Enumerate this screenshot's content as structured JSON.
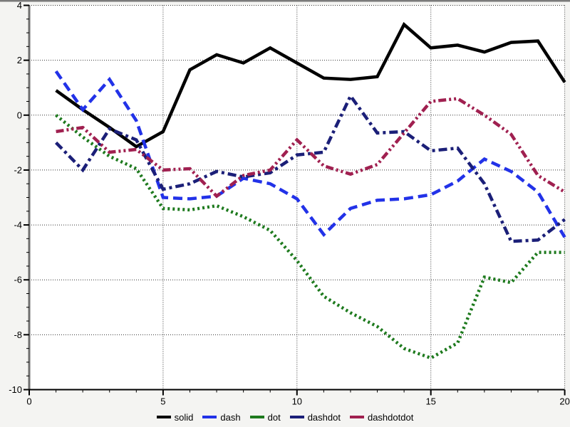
{
  "figure": {
    "margin_background": "#f4f4f2",
    "plot_background": "#ffffff",
    "grid_color": "#333333",
    "x_axis_color": "#000000",
    "y_axis_color": "#6f6f6f",
    "top_border_color": "#7a7a7a"
  },
  "axes": {
    "x": {
      "min": 0,
      "max": 20,
      "major_ticks": [
        0,
        5,
        10,
        15,
        20
      ],
      "labels": [
        "0",
        "5",
        "10",
        "15",
        "20"
      ],
      "minor_step": 1
    },
    "y": {
      "min": -10,
      "max": 4,
      "major_ticks": [
        4,
        2,
        0,
        -2,
        -4,
        -6,
        -8,
        -10
      ],
      "labels": [
        "4",
        "2",
        "0",
        "-2",
        "-4",
        "-6",
        "-8",
        "-10"
      ],
      "minor_step": 0.5
    }
  },
  "legend": {
    "position": "bottom-center",
    "items": [
      {
        "label": "solid",
        "color": "#000000"
      },
      {
        "label": "dash",
        "color": "#2232e8"
      },
      {
        "label": "dot",
        "color": "#1e7a1e"
      },
      {
        "label": "dashdot",
        "color": "#1b1f78"
      },
      {
        "label": "dashdotdot",
        "color": "#a02050"
      }
    ]
  },
  "chart_data": {
    "type": "line",
    "title": "",
    "xlabel": "",
    "ylabel": "",
    "xlim": [
      0,
      20
    ],
    "ylim": [
      -10,
      4
    ],
    "grid": true,
    "legend_position": "bottom",
    "x": [
      1,
      2,
      3,
      4,
      5,
      6,
      7,
      8,
      9,
      10,
      11,
      12,
      13,
      14,
      15,
      16,
      17,
      18,
      19,
      20
    ],
    "series": [
      {
        "name": "solid",
        "color": "#000000",
        "linestyle": "solid",
        "values": [
          0.9,
          0.2,
          -0.45,
          -1.15,
          -0.6,
          1.65,
          2.2,
          1.9,
          2.45,
          1.9,
          1.35,
          1.3,
          1.4,
          3.3,
          2.45,
          2.55,
          2.3,
          2.65,
          2.7,
          1.2
        ]
      },
      {
        "name": "dash",
        "color": "#2232e8",
        "linestyle": "dash",
        "values": [
          1.6,
          0.2,
          1.3,
          -0.2,
          -3.0,
          -3.05,
          -2.95,
          -2.3,
          -2.5,
          -3.05,
          -4.35,
          -3.4,
          -3.1,
          -3.05,
          -2.9,
          -2.4,
          -1.6,
          -2.05,
          -2.8,
          -4.45
        ]
      },
      {
        "name": "dot",
        "color": "#1e7a1e",
        "linestyle": "dot",
        "values": [
          0.0,
          -0.8,
          -1.5,
          -1.95,
          -3.4,
          -3.45,
          -3.3,
          -3.7,
          -4.2,
          -5.3,
          -6.6,
          -7.2,
          -7.7,
          -8.5,
          -8.85,
          -8.3,
          -5.9,
          -6.1,
          -5.0,
          -5.0
        ]
      },
      {
        "name": "dashdot",
        "color": "#1b1f78",
        "linestyle": "dashdot",
        "values": [
          -1.0,
          -2.0,
          -0.5,
          -0.9,
          -2.7,
          -2.5,
          -2.05,
          -2.25,
          -2.1,
          -1.45,
          -1.35,
          0.7,
          -0.65,
          -0.6,
          -1.3,
          -1.2,
          -2.5,
          -4.6,
          -4.55,
          -3.8
        ]
      },
      {
        "name": "dashdotdot",
        "color": "#a02050",
        "linestyle": "dashdotdot",
        "values": [
          -0.6,
          -0.45,
          -1.35,
          -1.25,
          -2.0,
          -1.95,
          -2.95,
          -2.2,
          -2.0,
          -0.9,
          -1.85,
          -2.15,
          -1.8,
          -0.65,
          0.5,
          0.6,
          0.0,
          -0.7,
          -2.2,
          -2.8
        ]
      }
    ]
  }
}
